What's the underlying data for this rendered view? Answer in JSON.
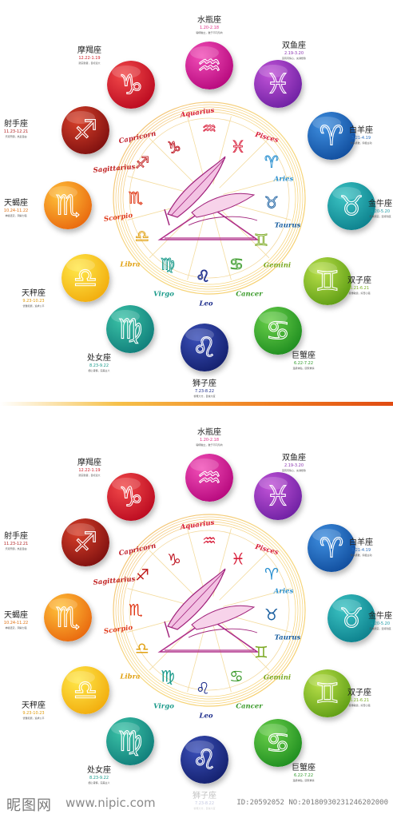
{
  "panels": [
    {
      "id": "top",
      "glyph_style": "outline"
    },
    {
      "id": "bottom",
      "glyph_style": "colored"
    }
  ],
  "signs": [
    {
      "key": "aquarius",
      "name": "水瓶座",
      "date": "1.20-2.18",
      "note": "聪明独立，敢于不同凡响",
      "color_a": "#f24fb8",
      "color_b": "#b3057a",
      "date_color": "#e0338a"
    },
    {
      "key": "pisces",
      "name": "双鱼座",
      "date": "2.19-3.20",
      "note": "富有同情心，充满想象",
      "color_a": "#c254d8",
      "color_b": "#6a1ea0",
      "date_color": "#8a34b0"
    },
    {
      "key": "aries",
      "name": "白羊座",
      "date": "3.21-4.19",
      "note": "热情勇敢，积极主动",
      "color_a": "#3f8fe0",
      "color_b": "#0e4a9a",
      "date_color": "#2c6fc0"
    },
    {
      "key": "taurus",
      "name": "金牛座",
      "date": "4.20-5.20",
      "note": "稳重踏实，坚持到底",
      "color_a": "#3cc4c4",
      "color_b": "#0a7d8a",
      "date_color": "#1a9aa5"
    },
    {
      "key": "gemini",
      "name": "双子座",
      "date": "5.21-6.21",
      "note": "思维敏捷，好奇心强",
      "color_a": "#b9e04a",
      "color_b": "#5a9a12",
      "date_color": "#7ab020"
    },
    {
      "key": "cancer",
      "name": "巨蟹座",
      "date": "6.22-7.22",
      "note": "温柔体贴，顾家重情",
      "color_a": "#6ad04a",
      "color_b": "#1b8a1e",
      "date_color": "#2e9a2a"
    },
    {
      "key": "leo",
      "name": "狮子座",
      "date": "7.23-8.22",
      "note": "慷慨大方，自信大度",
      "color_a": "#3a4fb8",
      "color_b": "#121e6a",
      "date_color": "#1e2e8a"
    },
    {
      "key": "virgo",
      "name": "处女座",
      "date": "8.23-9.22",
      "note": "细心谨慎，完美主义",
      "color_a": "#3cc4a8",
      "color_b": "#0e7a78",
      "date_color": "#159a8a"
    },
    {
      "key": "libra",
      "name": "天秤座",
      "date": "9.23-10.23",
      "note": "优雅和谐，追求公平",
      "color_a": "#ffe84a",
      "color_b": "#f1a90a",
      "date_color": "#e09a0a"
    },
    {
      "key": "scorpio",
      "name": "天蝎座",
      "date": "10.24-11.22",
      "note": "神秘坚定，洞察力强",
      "color_a": "#ffc23a",
      "color_b": "#e8640c",
      "date_color": "#e07010"
    },
    {
      "key": "sagittarius",
      "name": "射手座",
      "date": "11.23-12.21",
      "note": "乐观开朗，热爱自由",
      "color_a": "#d8402a",
      "color_b": "#7a0e0e",
      "date_color": "#b02020"
    },
    {
      "key": "capricorn",
      "name": "摩羯座",
      "date": "12.22-1.19",
      "note": "踏实勤奋，目标远大",
      "color_a": "#f24a4a",
      "color_b": "#b8071e",
      "date_color": "#d0202a"
    }
  ],
  "wheel_labels": [
    {
      "key": "aquarius",
      "text": "Aquarius",
      "color": "#d81e3a"
    },
    {
      "key": "pisces",
      "text": "Pisces",
      "color": "#d81e3a"
    },
    {
      "key": "aries",
      "text": "Aries",
      "color": "#2a90d0"
    },
    {
      "key": "taurus",
      "text": "Taurus",
      "color": "#1a5fa0"
    },
    {
      "key": "gemini",
      "text": "Gemini",
      "color": "#7aa820"
    },
    {
      "key": "cancer",
      "text": "Cancer",
      "color": "#3a9a2a"
    },
    {
      "key": "leo",
      "text": "Leo",
      "color": "#1a2a8a"
    },
    {
      "key": "virgo",
      "text": "Virgo",
      "color": "#1a9a8a"
    },
    {
      "key": "libra",
      "text": "Libra",
      "color": "#e0a010"
    },
    {
      "key": "scorpio",
      "text": "Scorpio",
      "color": "#e03a1a"
    },
    {
      "key": "sagittarius",
      "text": "Sagittarius",
      "color": "#c01e1e"
    },
    {
      "key": "capricorn",
      "text": "Capricorn",
      "color": "#c01e2a"
    }
  ],
  "glyphs": {
    "aquarius": "♒",
    "pisces": "♓",
    "aries": "♈",
    "taurus": "♉",
    "gemini": "♊",
    "cancer": "♋",
    "leo": "♌",
    "virgo": "♍",
    "libra": "♎",
    "scorpio": "♏",
    "sagittarius": "♐",
    "capricorn": "♑"
  },
  "footer": {
    "logo": "昵图网",
    "url": "www.nipic.com",
    "id": "ID:20592052 NO:20180930231246202000"
  }
}
